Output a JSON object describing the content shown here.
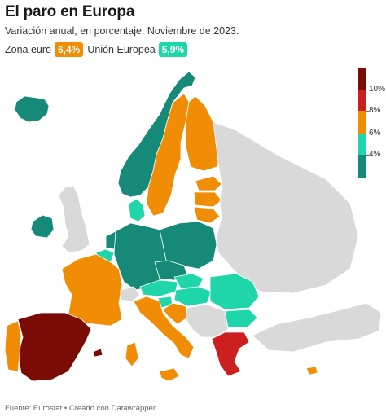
{
  "header": {
    "title": "El paro en Europa",
    "subtitle": "Variación anual, en porcentaje. Noviembre de 2023."
  },
  "summary": [
    {
      "label": "Zona euro",
      "value": "6,4%",
      "color": "#f18c05"
    },
    {
      "label": "Unión Europea",
      "value": "5,9%",
      "color": "#1ed6a9"
    }
  ],
  "legend": {
    "labels": [
      "10%",
      "8%",
      "6%",
      "4%"
    ],
    "colors": [
      "#7a0b05",
      "#cc2020",
      "#f18c05",
      "#1ed6a9",
      "#158a78"
    ]
  },
  "map_colors": {
    "dark_red": "#7a0b05",
    "red": "#cc2020",
    "orange": "#f18c05",
    "light_teal": "#1ed6a9",
    "teal": "#158a78",
    "no_data": "#d9d9d9"
  },
  "footer": {
    "source": "Fuente: Eurostat • Creado con Datawrapper"
  }
}
